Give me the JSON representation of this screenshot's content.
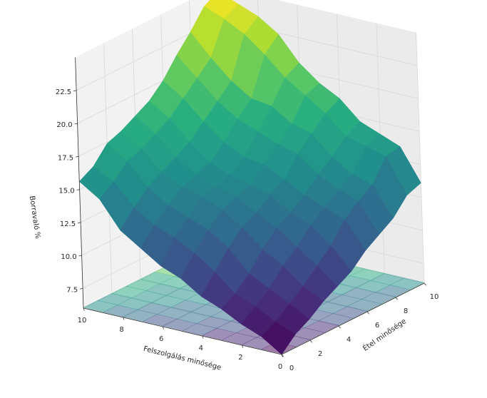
{
  "chart_data": {
    "type": "surface3d",
    "title": "",
    "xlabel": "Felszolgálás minősége",
    "ylabel": "Étel minősége",
    "zlabel": "Borravaló %",
    "xlim": [
      0,
      10
    ],
    "ylim": [
      0,
      10
    ],
    "zlim": [
      6,
      25
    ],
    "x_ticks": [
      0,
      2,
      4,
      6,
      8,
      10
    ],
    "y_ticks": [
      0,
      2,
      4,
      6,
      8,
      10
    ],
    "z_ticks": [
      "7.5",
      "10.0",
      "12.5",
      "15.0",
      "17.5",
      "20.0",
      "22.5"
    ],
    "colormap": "viridis",
    "x": [
      0,
      1,
      2,
      3,
      4,
      5,
      6,
      7,
      8,
      9,
      10
    ],
    "y": [
      0,
      1,
      2,
      3,
      4,
      5,
      6,
      7,
      8,
      9,
      10
    ],
    "z": [
      [
        6.0,
        7.0,
        7.6,
        8.4,
        9.0,
        9.6,
        10.6,
        11.3,
        12.0,
        13.2,
        13.6
      ],
      [
        7.0,
        7.6,
        8.4,
        9.2,
        10.2,
        11.2,
        12.6,
        13.5,
        14.2,
        15.8,
        16.0
      ],
      [
        7.6,
        8.4,
        9.2,
        10.4,
        11.3,
        12.4,
        13.2,
        14.0,
        14.6,
        16.2,
        16.6
      ],
      [
        8.4,
        9.0,
        10.0,
        11.3,
        12.4,
        13.0,
        13.8,
        14.8,
        15.6,
        16.6,
        17.2
      ],
      [
        9.0,
        10.3,
        11.6,
        12.6,
        13.2,
        14.0,
        14.6,
        16.0,
        17.0,
        18.0,
        18.6
      ],
      [
        10.0,
        11.4,
        12.6,
        13.6,
        14.0,
        14.4,
        15.4,
        16.4,
        17.4,
        19.0,
        19.4
      ],
      [
        10.6,
        12.2,
        13.2,
        14.2,
        14.4,
        14.8,
        15.6,
        17.0,
        18.4,
        20.0,
        20.6
      ],
      [
        11.6,
        12.8,
        13.8,
        14.6,
        15.0,
        15.4,
        16.4,
        17.6,
        18.6,
        21.4,
        22.4
      ],
      [
        12.6,
        13.8,
        14.8,
        15.4,
        16.0,
        16.6,
        17.6,
        18.6,
        19.6,
        22.6,
        23.4
      ],
      [
        14.6,
        15.4,
        16.4,
        16.8,
        17.4,
        18.0,
        19.0,
        20.0,
        21.0,
        23.4,
        24.0
      ],
      [
        15.6,
        16.2,
        17.4,
        17.8,
        18.4,
        19.0,
        20.0,
        21.4,
        22.6,
        24.0,
        24.6
      ]
    ],
    "contour_projection": "bottom",
    "grid": true
  }
}
